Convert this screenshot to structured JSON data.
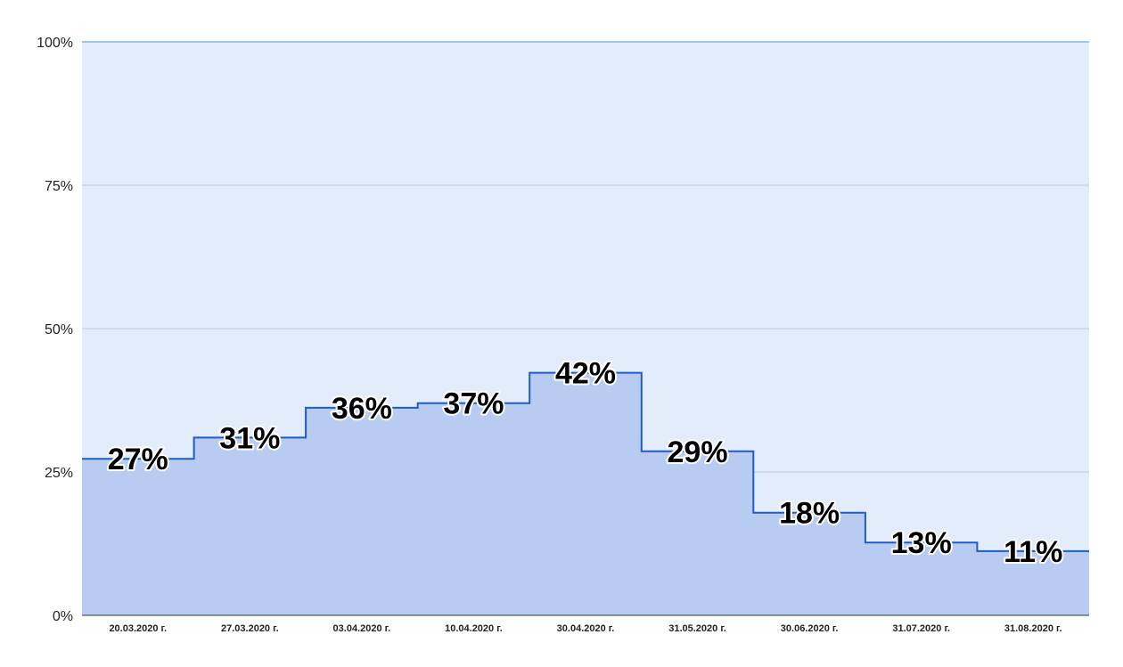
{
  "chart_data": {
    "type": "area",
    "style": "stepped",
    "categories": [
      "20.03.2020 г.",
      "27.03.2020 г.",
      "03.04.2020 г.",
      "10.04.2020 г.",
      "30.04.2020 г.",
      "31.05.2020 г.",
      "30.06.2020 г.",
      "31.07.2020 г.",
      "31.08.2020 г."
    ],
    "values": [
      27.3,
      31,
      36.2,
      37,
      42.3,
      28.6,
      17.9,
      12.7,
      11.2
    ],
    "data_labels": [
      "27%",
      "31%",
      "36%",
      "37%",
      "42%",
      "29%",
      "18%",
      "13%",
      "11%"
    ],
    "title": "",
    "xlabel": "",
    "ylabel": "",
    "ylim": [
      0,
      100
    ],
    "yticks": [
      0,
      25,
      50,
      75,
      100
    ],
    "ytick_labels": [
      "0%",
      "25%",
      "50%",
      "75%",
      "100%"
    ],
    "grid": true,
    "legend": "none",
    "colors": {
      "plot_background": "#e3ecfb",
      "area_fill": "#b8cbf1",
      "line": "#1e5cc8",
      "gridline": "#b9c6dc",
      "top_gridline": "#8fb0e8",
      "axis": "#333333",
      "label_text": "#000000",
      "label_halo": "#ffffff"
    }
  }
}
